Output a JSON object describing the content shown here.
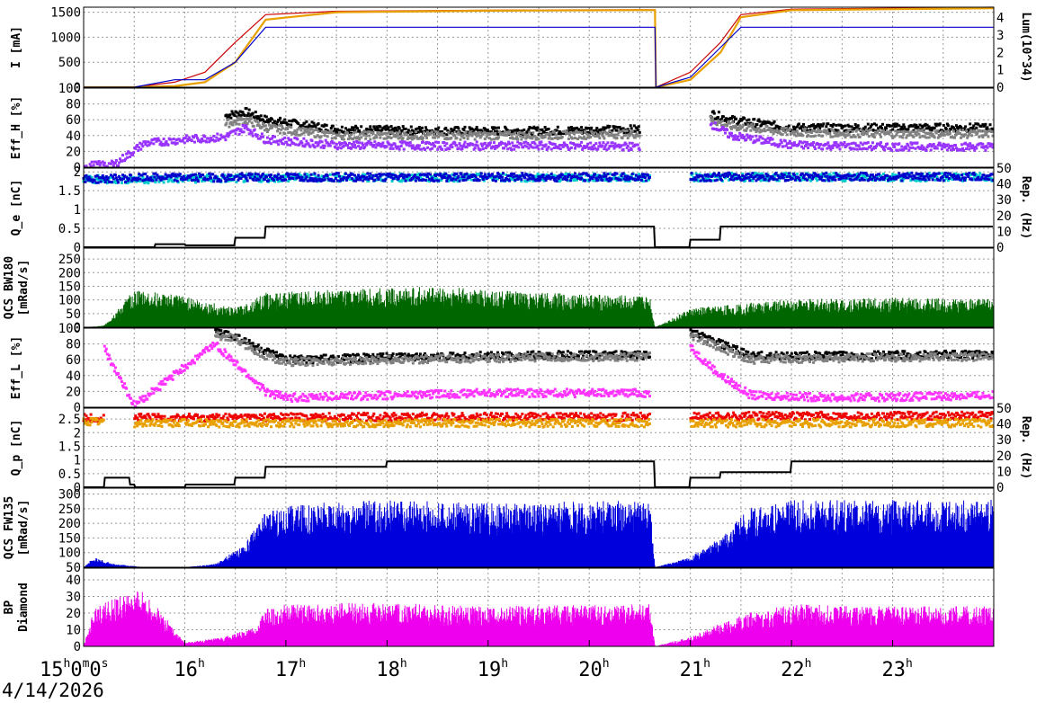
{
  "date": "4/14/2026",
  "x_ticks": [
    {
      "h": "15",
      "sup": "h",
      "rest": "0",
      "sup2": "m",
      "rest2": "0",
      "sup3": "s"
    },
    {
      "h": "16",
      "sup": "h"
    },
    {
      "h": "17",
      "sup": "h"
    },
    {
      "h": "18",
      "sup": "h"
    },
    {
      "h": "19",
      "sup": "h"
    },
    {
      "h": "20",
      "sup": "h"
    },
    {
      "h": "21",
      "sup": "h"
    },
    {
      "h": "22",
      "sup": "h"
    },
    {
      "h": "23",
      "sup": "h"
    }
  ],
  "chart_data": [
    {
      "type": "line",
      "ylabel": "I [mA]",
      "y2label": "Lum(10^34)",
      "ylim": [
        0,
        1600
      ],
      "yticks": [
        "0",
        "500",
        "1000",
        "1500"
      ],
      "y2lim": [
        0,
        4.6
      ],
      "y2ticks": [
        "0",
        "1",
        "2",
        "3",
        "4"
      ],
      "x": [
        15.0,
        15.2,
        15.5,
        15.9,
        16.2,
        16.5,
        16.8,
        17.5,
        19.0,
        20.5,
        20.65,
        20.66,
        21.0,
        21.3,
        21.5,
        22.0,
        23.0,
        24.0
      ],
      "series": [
        {
          "color": "#cc0000",
          "values": [
            0,
            0,
            0,
            100,
            300,
            900,
            1450,
            1520,
            1540,
            1550,
            1550,
            0,
            300,
            900,
            1450,
            1560,
            1580,
            1600
          ]
        },
        {
          "color": "#e8a000",
          "values": [
            0,
            0,
            0,
            20,
            100,
            500,
            1350,
            1500,
            1530,
            1540,
            1540,
            0,
            150,
            700,
            1400,
            1540,
            1560,
            1580
          ]
        },
        {
          "color": "#0000cc",
          "values": [
            0,
            0,
            0,
            150,
            150,
            500,
            1200,
            1200,
            1200,
            1200,
            1200,
            0,
            200,
            800,
            1200,
            1200,
            1200,
            1200
          ]
        }
      ]
    },
    {
      "type": "scatter",
      "ylabel": "Eff_H [%]",
      "ylim": [
        0,
        100
      ],
      "yticks": [
        "0",
        "20",
        "40",
        "60",
        "80",
        "100"
      ],
      "x": [
        15.0,
        15.3,
        15.6,
        16.0,
        16.4,
        16.6,
        16.8,
        17.5,
        18.5,
        19.5,
        20.5,
        20.7,
        21.2,
        21.4,
        22.0,
        23.0,
        24.0
      ],
      "series": [
        {
          "color": "#000000",
          "values": [
            null,
            null,
            null,
            null,
            65,
            70,
            60,
            48,
            46,
            46,
            48,
            null,
            68,
            60,
            50,
            50,
            50
          ]
        },
        {
          "color": "#808080",
          "values": [
            null,
            null,
            null,
            null,
            55,
            60,
            50,
            40,
            40,
            40,
            42,
            null,
            60,
            52,
            44,
            42,
            42
          ]
        },
        {
          "color": "#9933ff",
          "values": [
            2,
            3,
            30,
            35,
            38,
            50,
            35,
            28,
            27,
            27,
            26,
            null,
            55,
            40,
            28,
            26,
            26
          ]
        }
      ]
    },
    {
      "type": "scatter",
      "ylabel": "Q_e [nC]",
      "y2label": "Rep. (Hz)",
      "ylim": [
        0,
        2.1
      ],
      "yticks": [
        "0",
        "0.5",
        "1",
        "1.5",
        "2"
      ],
      "y2lim": [
        0,
        50
      ],
      "y2ticks": [
        "0",
        "10",
        "20",
        "30",
        "40",
        "50"
      ],
      "x": [
        15.0,
        15.7,
        16.0,
        16.5,
        16.8,
        18.0,
        20.6,
        20.65,
        21.0,
        21.3,
        22.0,
        24.0
      ],
      "series": [
        {
          "color": "#00cccc",
          "values": [
            1.8,
            1.8,
            1.82,
            1.82,
            1.84,
            1.85,
            1.85,
            null,
            1.85,
            1.86,
            1.86,
            1.86
          ]
        },
        {
          "color": "#0000cc",
          "values": [
            1.8,
            1.85,
            1.85,
            1.85,
            1.86,
            1.86,
            1.86,
            null,
            1.86,
            1.87,
            1.87,
            1.87
          ]
        },
        {
          "color": "#000000",
          "step": true,
          "values": [
            0,
            0.08,
            0.05,
            0.25,
            0.55,
            0.55,
            0.55,
            0,
            0.2,
            0.55,
            0.55,
            0.55
          ]
        }
      ]
    },
    {
      "type": "bar",
      "ylabel": "QCS BW180",
      "ylabel2": "[mRad/s]",
      "ylim": [
        0,
        290
      ],
      "yticks": [
        "0",
        "50",
        "100",
        "150",
        "200",
        "250"
      ],
      "x": [
        15.0,
        15.2,
        15.5,
        16.0,
        16.5,
        16.8,
        17.5,
        18.5,
        19.5,
        20.6,
        20.65,
        21.0,
        21.3,
        22.0,
        23.0,
        24.0
      ],
      "series": [
        {
          "color": "#006600",
          "values": [
            0,
            5,
            120,
            100,
            60,
            110,
            120,
            130,
            110,
            100,
            0,
            60,
            70,
            90,
            95,
            90
          ]
        }
      ]
    },
    {
      "type": "scatter",
      "ylabel": "Eff_L [%]",
      "ylim": [
        0,
        100
      ],
      "yticks": [
        "0",
        "20",
        "40",
        "60",
        "80",
        "100"
      ],
      "x": [
        15.0,
        15.2,
        15.5,
        16.3,
        16.5,
        16.8,
        17.0,
        18.0,
        19.0,
        20.0,
        20.6,
        20.7,
        21.0,
        21.3,
        21.6,
        22.5,
        24.0
      ],
      "series": [
        {
          "color": "#000000",
          "values": [
            null,
            null,
            null,
            95,
            90,
            70,
            60,
            63,
            65,
            66,
            66,
            null,
            95,
            80,
            65,
            65,
            67
          ]
        },
        {
          "color": "#808080",
          "values": [
            null,
            null,
            null,
            92,
            86,
            65,
            57,
            60,
            62,
            63,
            64,
            null,
            90,
            75,
            60,
            62,
            64
          ]
        },
        {
          "color": "#ff33ff",
          "values": [
            null,
            75,
            2,
            80,
            55,
            20,
            12,
            15,
            18,
            18,
            18,
            null,
            75,
            40,
            15,
            12,
            15
          ]
        }
      ]
    },
    {
      "type": "scatter",
      "ylabel": "Q_p [nC]",
      "y2label": "Rep. (Hz)",
      "ylim": [
        0,
        2.9
      ],
      "yticks": [
        "0",
        "0.5",
        "1",
        "1.5",
        "2",
        "2.5"
      ],
      "y2lim": [
        0,
        50
      ],
      "y2ticks": [
        "0",
        "10",
        "20",
        "30",
        "40",
        "50"
      ],
      "x": [
        15.0,
        15.2,
        15.45,
        15.5,
        16.0,
        16.5,
        16.8,
        18.0,
        20.6,
        20.65,
        21.0,
        21.3,
        22.0,
        24.0
      ],
      "series": [
        {
          "color": "#ee0000",
          "values": [
            2.55,
            2.55,
            null,
            2.55,
            2.55,
            2.56,
            2.57,
            2.58,
            2.58,
            null,
            2.58,
            2.6,
            2.62,
            2.62
          ]
        },
        {
          "color": "#e8a000",
          "values": [
            2.4,
            2.4,
            null,
            2.35,
            2.35,
            2.35,
            2.35,
            2.35,
            2.35,
            null,
            2.35,
            2.35,
            2.35,
            2.35
          ]
        },
        {
          "color": "#000000",
          "step": true,
          "values": [
            0,
            0.35,
            0.1,
            0,
            0.1,
            0.35,
            0.75,
            0.95,
            0.95,
            0,
            0.35,
            0.55,
            0.95,
            0.95
          ]
        }
      ]
    },
    {
      "type": "bar",
      "ylabel": "QCS FW135",
      "ylabel2": "[mRad/s]",
      "ylim": [
        50,
        320
      ],
      "yticks": [
        "50",
        "100",
        "150",
        "200",
        "250",
        "300"
      ],
      "x": [
        15.0,
        15.1,
        15.3,
        15.6,
        16.0,
        16.3,
        16.6,
        16.8,
        17.2,
        18.0,
        19.0,
        20.6,
        20.65,
        21.0,
        21.3,
        21.6,
        22.0,
        23.0,
        24.0
      ],
      "series": [
        {
          "color": "#0000dd",
          "values": [
            50,
            80,
            60,
            50,
            50,
            60,
            120,
            220,
            240,
            250,
            240,
            250,
            50,
            80,
            140,
            230,
            250,
            250,
            250
          ]
        }
      ]
    },
    {
      "type": "bar",
      "ylabel": "BP",
      "ylabel2": "Diamond",
      "ylim": [
        0,
        47
      ],
      "yticks": [
        "0",
        "10",
        "20",
        "30",
        "40"
      ],
      "x": [
        15.0,
        15.1,
        15.3,
        15.6,
        16.0,
        16.4,
        16.7,
        16.8,
        17.0,
        18.0,
        19.0,
        20.6,
        20.65,
        21.0,
        21.3,
        21.6,
        22.0,
        23.0,
        24.0
      ],
      "series": [
        {
          "color": "#ee00ee",
          "values": [
            0,
            20,
            25,
            30,
            2,
            5,
            10,
            20,
            22,
            23,
            21,
            22,
            0,
            5,
            12,
            18,
            22,
            21,
            21
          ]
        }
      ]
    }
  ]
}
